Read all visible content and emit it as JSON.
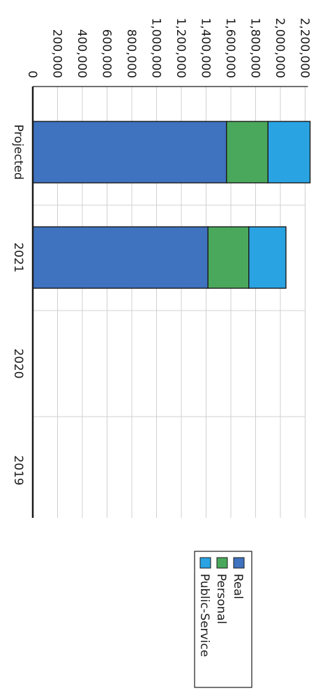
{
  "chart_data": {
    "type": "bar",
    "orientation": "horizontal-stacked",
    "categories": [
      "Projected",
      "2021",
      "2020",
      "2019"
    ],
    "series": [
      {
        "name": "Real",
        "color": "#3f72bf",
        "values": [
          1565000,
          1415000,
          0,
          0
        ]
      },
      {
        "name": "Personal",
        "color": "#4aa85c",
        "values": [
          335000,
          330000,
          0,
          0
        ]
      },
      {
        "name": "Public-Service",
        "color": "#2aa3e3",
        "values": [
          340000,
          300000,
          0,
          0
        ]
      }
    ],
    "xlim": [
      0,
      2200000
    ],
    "ticks": [
      "0",
      "200,000",
      "400,000",
      "600,000",
      "800,000",
      "1,000,000",
      "1,200,000",
      "1,400,000",
      "1,600,000",
      "1,800,000",
      "2,000,000",
      "2,200,000"
    ],
    "tick_values": [
      0,
      200000,
      400000,
      600000,
      800000,
      1000000,
      1200000,
      1400000,
      1600000,
      1800000,
      2000000,
      2200000
    ],
    "grid": true,
    "legend_position": "bottom-right",
    "title": "",
    "xlabel": "",
    "ylabel": ""
  }
}
